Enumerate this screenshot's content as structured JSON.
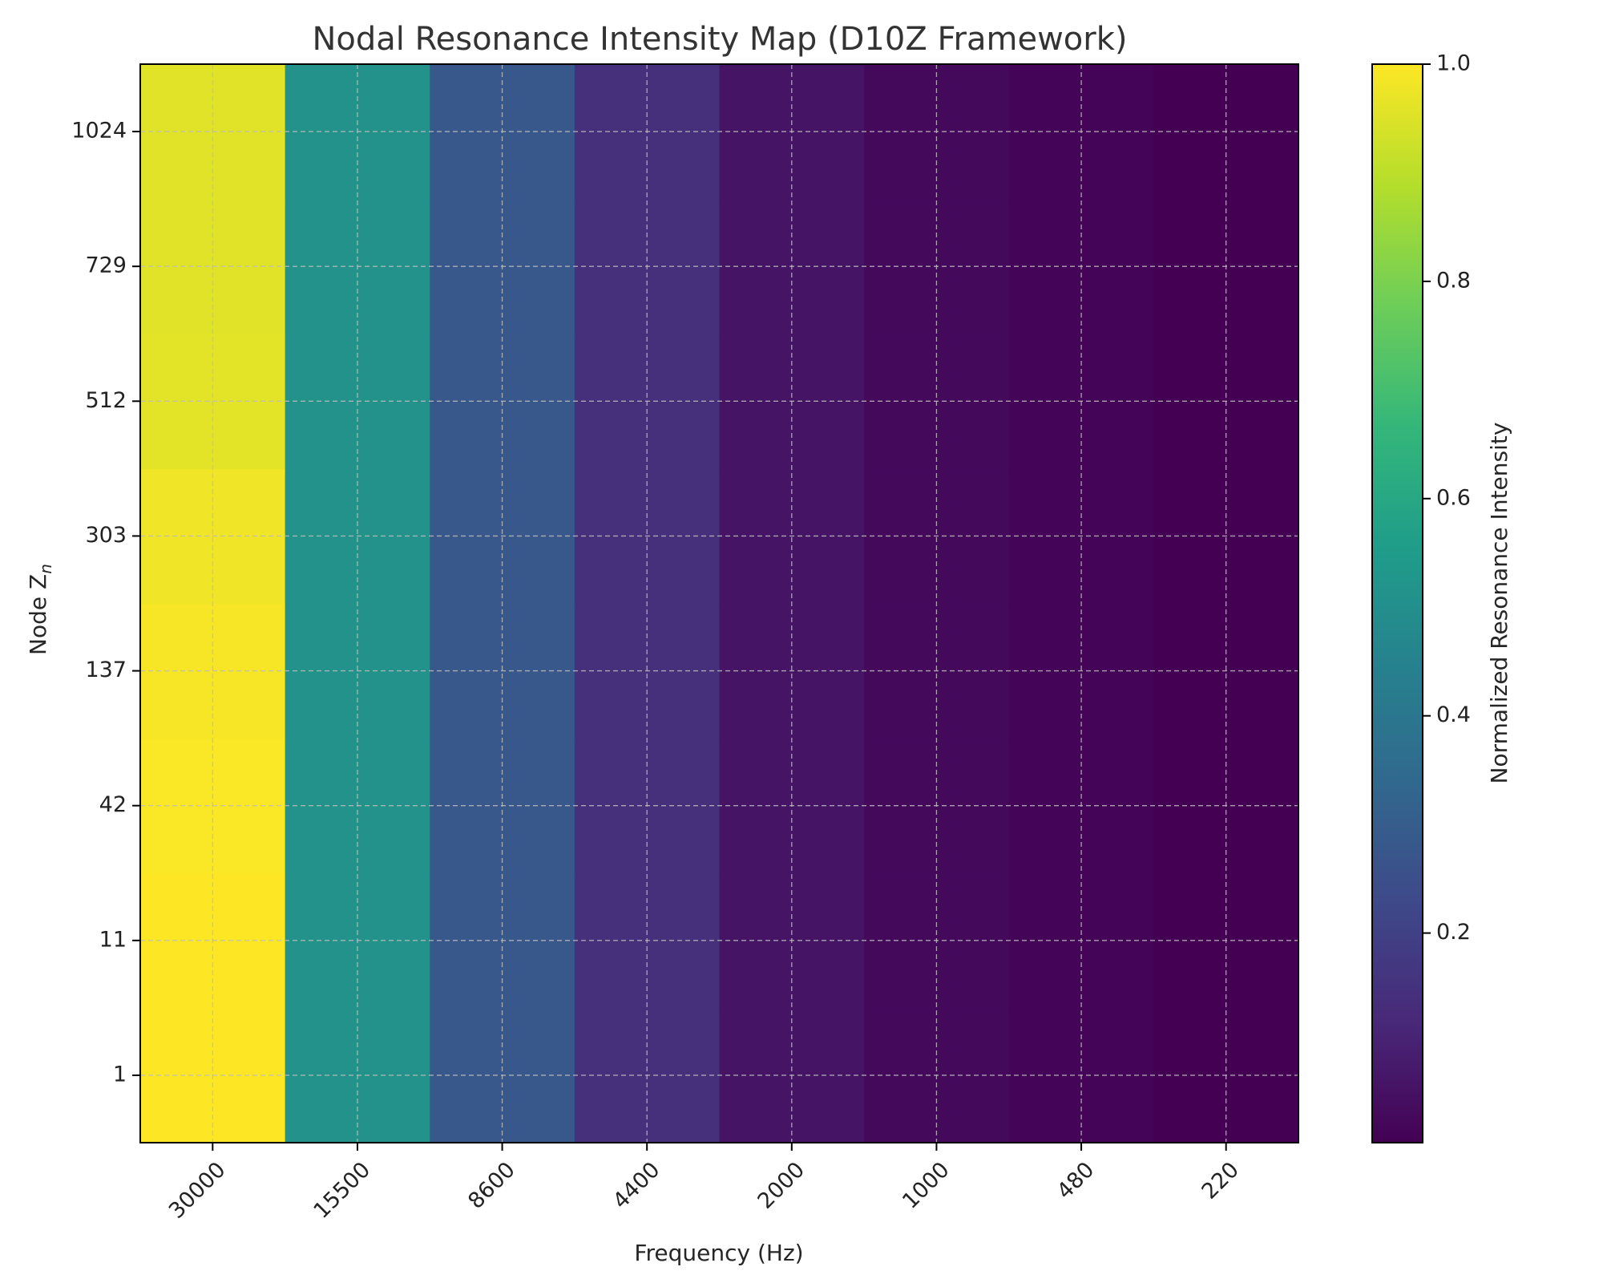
{
  "chart_data": {
    "type": "heatmap",
    "title": "Nodal Resonance Intensity Map (D10Z Framework)",
    "xlabel": "Frequency (Hz)",
    "ylabel": "Node Z",
    "ylabel_subscript": "n",
    "x_categories": [
      "30000",
      "15500",
      "8600",
      "4400",
      "2000",
      "1000",
      "480",
      "220"
    ],
    "y_categories": [
      "1",
      "11",
      "42",
      "137",
      "303",
      "512",
      "729",
      "1024"
    ],
    "values": [
      [
        1.0,
        0.51,
        0.28,
        0.14,
        0.06,
        0.03,
        0.015,
        0.007
      ],
      [
        1.0,
        0.51,
        0.28,
        0.14,
        0.06,
        0.03,
        0.015,
        0.007
      ],
      [
        0.995,
        0.51,
        0.28,
        0.14,
        0.06,
        0.03,
        0.015,
        0.007
      ],
      [
        0.99,
        0.51,
        0.28,
        0.14,
        0.06,
        0.03,
        0.015,
        0.007
      ],
      [
        0.98,
        0.51,
        0.28,
        0.14,
        0.06,
        0.03,
        0.015,
        0.007
      ],
      [
        0.96,
        0.51,
        0.28,
        0.14,
        0.06,
        0.03,
        0.015,
        0.007
      ],
      [
        0.955,
        0.51,
        0.28,
        0.14,
        0.06,
        0.03,
        0.015,
        0.007
      ],
      [
        0.955,
        0.51,
        0.28,
        0.14,
        0.06,
        0.03,
        0.015,
        0.007
      ]
    ],
    "colorbar": {
      "label": "Normalized Resonance Intensity",
      "range": [
        0.007,
        1.0
      ],
      "ticks": [
        "0.2",
        "0.4",
        "0.6",
        "0.8",
        "1.0"
      ],
      "colormap": "viridis",
      "colors": [
        "#440154",
        "#482878",
        "#3e4989",
        "#31688e",
        "#26828e",
        "#1f9e89",
        "#35b779",
        "#6ece58",
        "#b5de2b",
        "#fde725"
      ]
    },
    "grid": true,
    "x_tick_rotation": 45
  }
}
